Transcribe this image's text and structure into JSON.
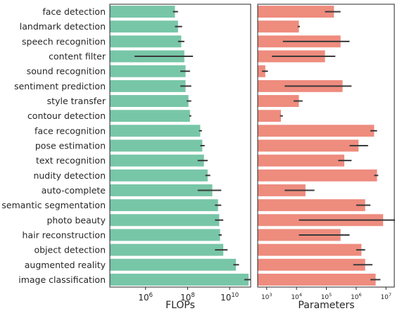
{
  "chart_data": [
    {
      "type": "bar",
      "orientation": "horizontal",
      "xscale": "log",
      "xlabel": "FLOPs",
      "xlim": [
        20000.0,
        100000000000.0
      ],
      "xticks": [
        {
          "value": 1000000.0,
          "base": "10",
          "exp": "6"
        },
        {
          "value": 100000000.0,
          "base": "10",
          "exp": "8"
        },
        {
          "value": 10000000000.0,
          "base": "10",
          "exp": "10"
        }
      ],
      "color": "#78c6a8",
      "categories": [
        "face detection",
        "landmark detection",
        "speech recognition",
        "content filter",
        "sound recognition",
        "sentiment prediction",
        "style transfer",
        "contour detection",
        "face recognition",
        "pose estimation",
        "text recognition",
        "nudity detection",
        "auto-complete",
        "semantic segmentation",
        "photo beauty",
        "hair reconstruction",
        "object detection",
        "augmented reality",
        "image classification"
      ],
      "values": [
        25000000.0,
        35000000.0,
        50000000.0,
        70000000.0,
        80000000.0,
        80000000.0,
        110000000.0,
        130000000.0,
        400000000.0,
        500000000.0,
        600000000.0,
        900000000.0,
        1500000000.0,
        2800000000.0,
        3200000000.0,
        3500000000.0,
        5000000000.0,
        20000000000.0,
        80000000000.0
      ],
      "err_low": [
        20000000.0,
        25000000.0,
        35000000.0,
        300000.0,
        45000000.0,
        45000000.0,
        90000000.0,
        120000000.0,
        350000000.0,
        400000000.0,
        300000000.0,
        700000000.0,
        300000000.0,
        2000000000.0,
        2000000000.0,
        3000000000.0,
        2000000000.0,
        15000000000.0,
        50000000000.0
      ],
      "err_high": [
        35000000.0,
        55000000.0,
        70000000.0,
        180000000.0,
        130000000.0,
        150000000.0,
        150000000.0,
        150000000.0,
        480000000.0,
        650000000.0,
        900000000.0,
        1200000000.0,
        4000000000.0,
        4000000000.0,
        5000000000.0,
        4200000000.0,
        8000000000.0,
        28000000000.0,
        130000000000.0
      ]
    },
    {
      "type": "bar",
      "orientation": "horizontal",
      "xscale": "log",
      "xlabel": "Parameters",
      "xlim": [
        500,
        20000000.0
      ],
      "xticks": [
        {
          "value": 1000.0,
          "base": "10",
          "exp": "3"
        },
        {
          "value": 10000.0,
          "base": "10",
          "exp": "4"
        },
        {
          "value": 100000.0,
          "base": "10",
          "exp": "5"
        },
        {
          "value": 1000000.0,
          "base": "10",
          "exp": "6"
        },
        {
          "value": 10000000.0,
          "base": "10",
          "exp": "7"
        }
      ],
      "color": "#ee8c7e",
      "categories": [
        "face detection",
        "landmark detection",
        "speech recognition",
        "content filter",
        "sound recognition",
        "sentiment prediction",
        "style transfer",
        "contour detection",
        "face recognition",
        "pose estimation",
        "text recognition",
        "nudity detection",
        "auto-complete",
        "semantic segmentation",
        "photo beauty",
        "hair reconstruction",
        "object detection",
        "augmented reality",
        "image classification"
      ],
      "values": [
        180000.0,
        12000.0,
        300000.0,
        90000.0,
        900,
        350000.0,
        12000.0,
        3000.0,
        4000000.0,
        1200000.0,
        400000.0,
        5000000.0,
        20000.0,
        2000000.0,
        8000000.0,
        300000.0,
        1500000.0,
        2000000.0,
        4500000.0
      ],
      "err_low": [
        90000.0,
        11000.0,
        3500.0,
        1500.0,
        700,
        4000.0,
        8000.0,
        2800.0,
        3000000.0,
        600000.0,
        250000.0,
        4000000.0,
        4000.0,
        1000000.0,
        12000.0,
        12000.0,
        1000000.0,
        800000.0,
        3000000.0
      ],
      "err_high": [
        300000.0,
        13000.0,
        600000.0,
        200000.0,
        1100.0,
        700000.0,
        16000.0,
        3500.0,
        5000000.0,
        2500000.0,
        700000.0,
        5500000.0,
        40000.0,
        3000000.0,
        20000000.0,
        600000.0,
        2000000.0,
        3500000.0,
        6500000.0
      ]
    }
  ]
}
